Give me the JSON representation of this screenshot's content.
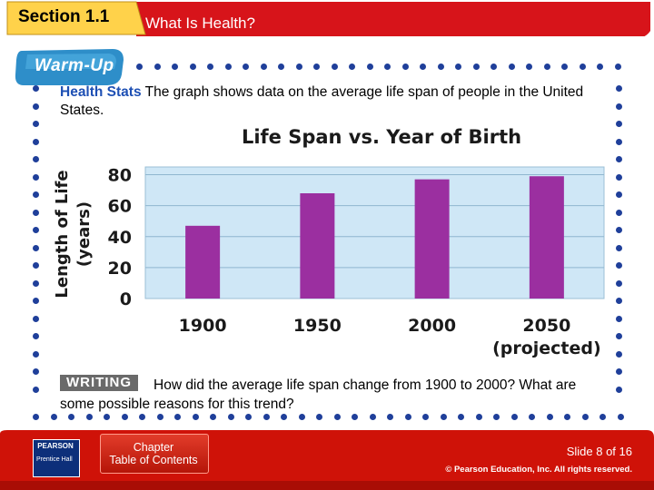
{
  "header": {
    "section_label": "Section 1.1",
    "title": "What Is Health?"
  },
  "warmup": {
    "badge_label": "Warm-Up",
    "prompt_highlight": "Health Stats",
    "prompt_text": " The graph shows data on the average life span of people in the United States."
  },
  "chart_data": {
    "type": "bar",
    "title": "Life Span vs. Year of Birth",
    "ylabel_line1": "Length of Life",
    "ylabel_line2": "(years)",
    "categories": [
      "1900",
      "1950",
      "2000",
      "2050"
    ],
    "category_notes": [
      "",
      "",
      "",
      "(projected)"
    ],
    "values": [
      47,
      68,
      77,
      79
    ],
    "yticks": [
      "0",
      "20",
      "40",
      "60",
      "80"
    ],
    "ylim": [
      0,
      85
    ],
    "grid": true,
    "bar_color": "#9b2fa0",
    "plot_background": "#cfe7f6"
  },
  "writing": {
    "badge_label": "WRITING",
    "question": "How did the average life span change from 1900 to 2000? What are some possible reasons for this trend?"
  },
  "footer": {
    "logo_name": "PEARSON",
    "logo_imprint": "Prentice Hall",
    "toc_label_line1": "Chapter",
    "toc_label_line2": "Table of Contents",
    "slide_counter": "Slide 8 of 16",
    "copyright": "© Pearson Education, Inc. All rights reserved."
  },
  "colors": {
    "header_red": "#d7141a",
    "dot_blue": "#1f3f9a",
    "accent_blue": "#1e50b4"
  }
}
